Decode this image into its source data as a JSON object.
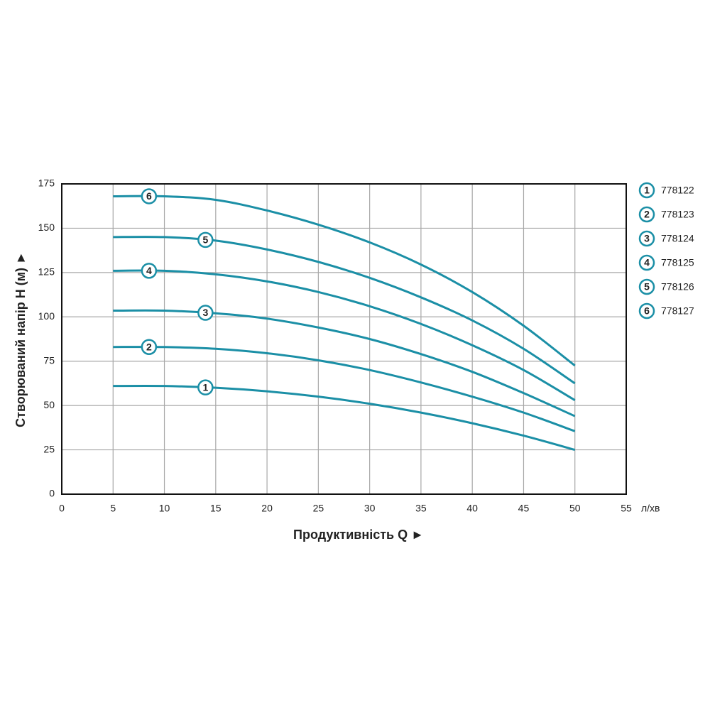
{
  "chart_data": {
    "type": "line",
    "xlabel": "Продуктивність  Q ►",
    "ylabel": "Створюваний напір H (м) ►",
    "xunit": "л/хв",
    "x": [
      5,
      10,
      15,
      20,
      25,
      30,
      35,
      40,
      45,
      50
    ],
    "series": [
      {
        "name": "778122",
        "label": "1",
        "color": "#1b8fa6",
        "values": [
          61,
          61,
          60,
          58,
          55,
          51,
          46,
          40,
          33,
          25
        ]
      },
      {
        "name": "778123",
        "label": "2",
        "color": "#1b8fa6",
        "values": [
          83,
          83,
          82,
          79.5,
          75.5,
          70,
          63,
          55,
          46,
          35.5
        ]
      },
      {
        "name": "778124",
        "label": "3",
        "color": "#1b8fa6",
        "values": [
          103.5,
          103.5,
          102,
          99,
          94,
          87.5,
          79,
          69,
          57,
          44
        ]
      },
      {
        "name": "778125",
        "label": "4",
        "color": "#1b8fa6",
        "values": [
          126,
          126,
          124,
          120,
          114,
          106,
          96,
          84,
          70,
          53
        ]
      },
      {
        "name": "778126",
        "label": "5",
        "color": "#1b8fa6",
        "values": [
          145,
          145,
          143,
          138,
          131,
          122,
          111,
          98,
          82,
          62.5
        ]
      },
      {
        "name": "778127",
        "label": "6",
        "color": "#1b8fa6",
        "values": [
          168,
          168,
          166,
          160,
          152,
          142,
          129.5,
          114,
          95,
          72.5
        ]
      }
    ],
    "xlim": [
      0,
      55
    ],
    "xticks": [
      0,
      5,
      10,
      15,
      20,
      25,
      30,
      35,
      40,
      45,
      50,
      55
    ],
    "ylim": [
      0,
      175
    ],
    "yticks": [
      0,
      25,
      50,
      75,
      100,
      125,
      150,
      175
    ],
    "grid": true
  }
}
